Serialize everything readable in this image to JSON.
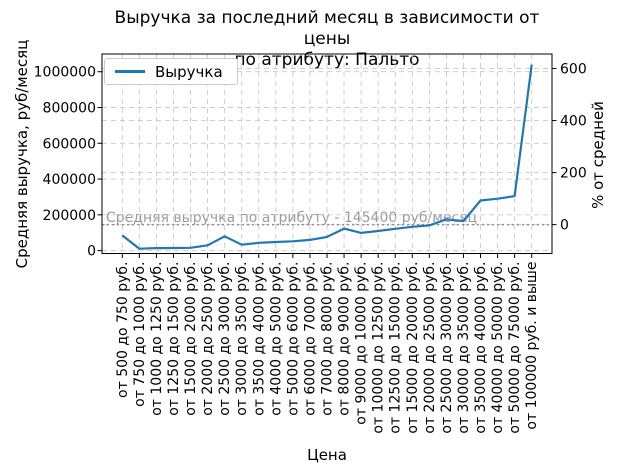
{
  "title": {
    "line1": "Выручка за последний месяц в зависимости от цены",
    "line2": "по атрибуту: Пальто"
  },
  "axes": {
    "x_label": "Цена",
    "y_left_label": "Средняя выручка, руб/месяц",
    "y_right_label": "% от средней",
    "y_left_ticks": [
      "0",
      "200000",
      "400000",
      "600000",
      "800000",
      "1000000"
    ],
    "y_right_ticks": [
      "0",
      "200",
      "400",
      "600"
    ]
  },
  "legend": {
    "items": [
      {
        "label": "Выручка",
        "color": "#1f77b4"
      }
    ],
    "position": "upper left"
  },
  "annotation": {
    "text": "Средняя выручка по атрибуту - 145400 руб/месяц"
  },
  "colors": {
    "line": "#1f77b4",
    "grid": "#c9c9c9",
    "average_line": "#8f8f8f",
    "annotation_text": "#9b9b9b",
    "spine": "#000000"
  },
  "chart_data": {
    "type": "line",
    "title": "Выручка за последний месяц в зависимости от цены по атрибуту: Пальто",
    "xlabel": "Цена",
    "ylabel": "Средняя выручка, руб/месяц",
    "y2label": "% от средней",
    "categories": [
      "от 500 до 750 руб.",
      "от 750 до 1000 руб.",
      "от 1000 до 1250 руб.",
      "от 1250 до 1500 руб.",
      "от 1500 до 2000 руб.",
      "от 2000 до 2500 руб.",
      "от 2500 до 3000 руб.",
      "от 3000 до 3500 руб.",
      "от 3500 до 4000 руб.",
      "от 4000 до 5000 руб.",
      "от 5000 до 6000 руб.",
      "от 6000 до 7000 руб.",
      "от 7000 до 8000 руб.",
      "от 8000 до 9000 руб.",
      "от 9000 до 10000 руб.",
      "от 10000 до 12500 руб.",
      "от 12500 до 15000 руб.",
      "от 15000 до 20000 руб.",
      "от 20000 до 25000 руб.",
      "от 25000 до 30000 руб.",
      "от 30000 до 35000 руб.",
      "от 35000 до 40000 руб.",
      "от 40000 до 50000 руб.",
      "от 50000 до 75000 руб.",
      "от 100000 руб. и выше"
    ],
    "series": [
      {
        "name": "Выручка",
        "color": "#1f77b4",
        "values": [
          85000,
          11000,
          14000,
          15000,
          16000,
          30000,
          80000,
          33000,
          44000,
          48000,
          52000,
          60000,
          77000,
          123000,
          99000,
          110000,
          122000,
          133000,
          141000,
          175000,
          165000,
          280000,
          290000,
          305000,
          1040000
        ]
      }
    ],
    "average_line": {
      "value": 145400,
      "label": "Средняя выручка по атрибуту - 145400 руб/месяц",
      "style": "dotted"
    },
    "y_ticks": [
      0,
      200000,
      400000,
      600000,
      800000,
      1000000
    ],
    "y2_ticks_pct": [
      0,
      200,
      400,
      600
    ],
    "ylim": [
      -16000,
      1099000
    ],
    "grid": true,
    "legend_position": "upper left"
  }
}
